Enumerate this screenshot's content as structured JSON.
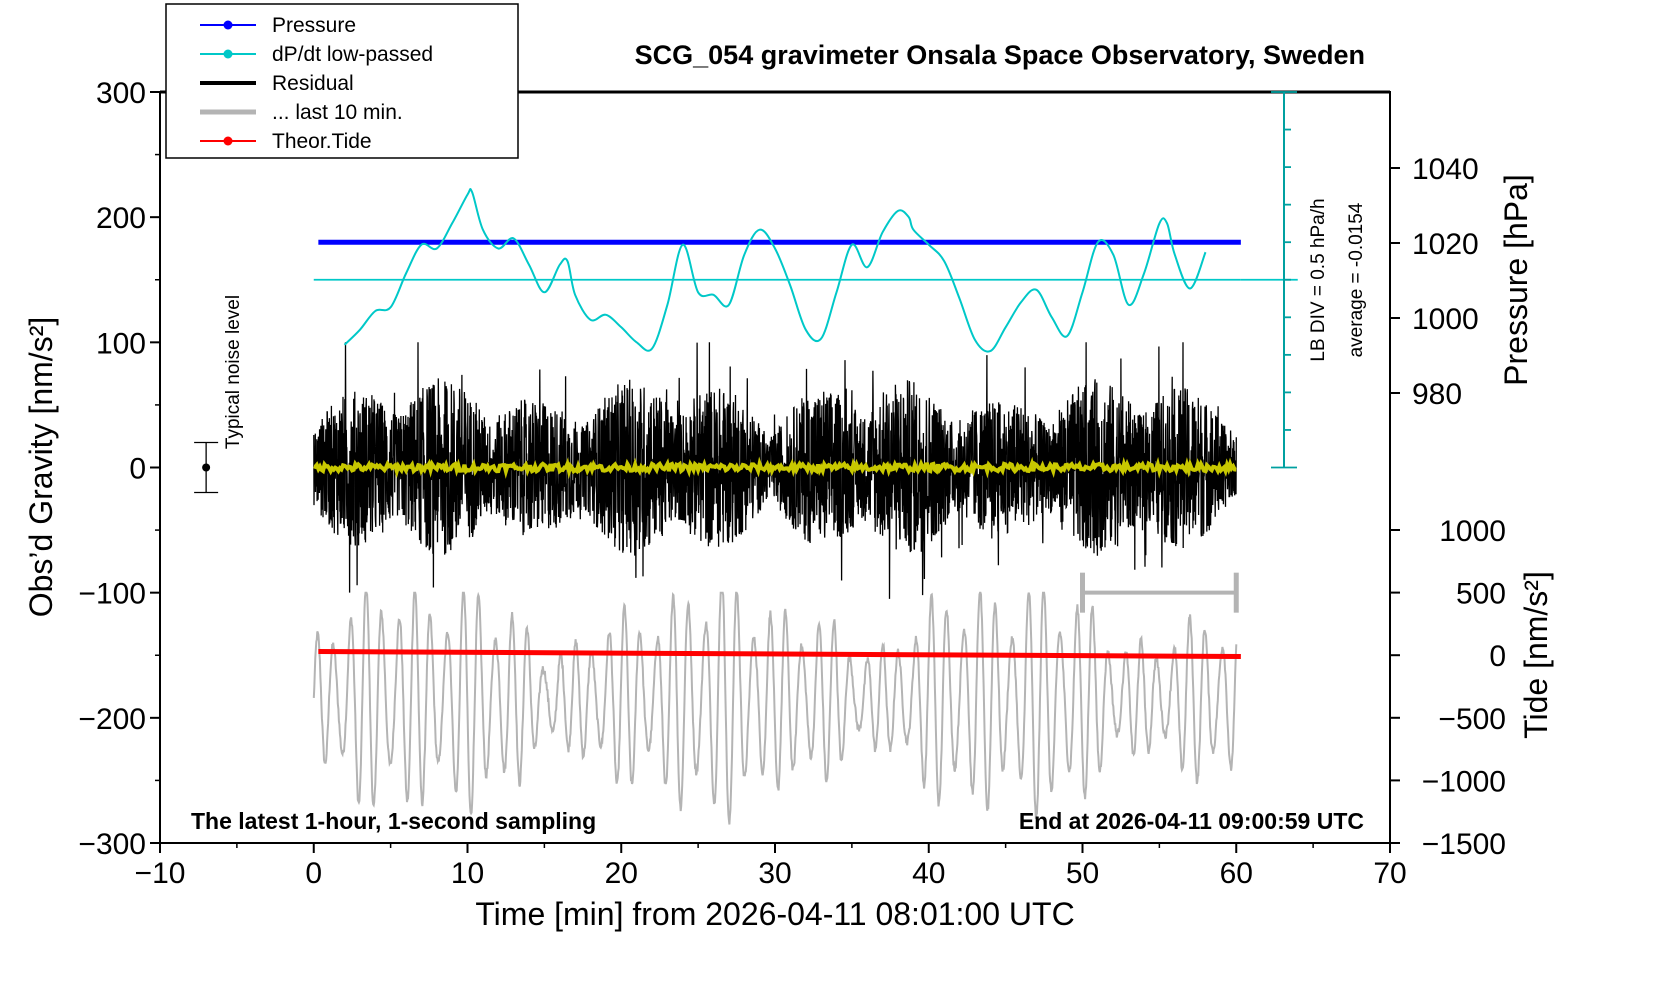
{
  "chart_data": {
    "type": "line",
    "title": "SCG_054 gravimeter Onsala Space Observatory, Sweden",
    "xlabel": "Time [min] from 2026-04-11 08:01:00 UTC",
    "ylabel": "Obs’d Gravity [nm/s²]",
    "ylabel_right_top": "Pressure [hPa]",
    "ylabel_right_bottom": "Tide [nm/s²]",
    "xlim": [
      -10,
      70
    ],
    "ylim": [
      -300,
      300
    ],
    "x_ticks": [
      "−10",
      "0",
      "10",
      "20",
      "30",
      "40",
      "50",
      "60",
      "70"
    ],
    "y_ticks": [
      "300",
      "200",
      "100",
      "0",
      "−100",
      "−200",
      "−300"
    ],
    "pressure_axis": {
      "ticks": [
        "1040",
        "1020",
        "1000",
        "980"
      ],
      "tick_values": [
        1040,
        1020,
        1000,
        980
      ],
      "value": 1020
    },
    "tide_axis": {
      "ticks": [
        "1000",
        "500",
        "0",
        "−500",
        "−1000",
        "−1500"
      ],
      "tick_values": [
        1000,
        500,
        0,
        -500,
        -1000,
        -1500
      ],
      "start": -120,
      "end": -50
    },
    "dpdt_scale": {
      "label": "LB DIV = 0.5 hPa/h",
      "average_label": "average = -0.0154",
      "baseline": 150
    },
    "noise_label": "Typical noise level",
    "noise_bar": {
      "x": -7,
      "center": 0,
      "half_range": 20
    },
    "last10_bracket": {
      "x_start": 50,
      "x_end": 60,
      "y": -100
    },
    "left_note": "The latest 1-hour, 1-second sampling",
    "right_note": "End at 2026-04-11 09:00:59 UTC",
    "legend": [
      {
        "label": "Pressure",
        "color": "#0000ff",
        "marker": true
      },
      {
        "label": "dP/dt low-passed",
        "color": "#00c8c8",
        "marker": true
      },
      {
        "label": "Residual",
        "color": "#000000",
        "marker": false
      },
      {
        "label": "... last 10 min.",
        "color": "#b4b4b4",
        "marker": false
      },
      {
        "label": "Theor.Tide",
        "color": "#ff0000",
        "marker": true
      }
    ],
    "series": [
      {
        "name": "Pressure",
        "color": "#0000ff",
        "x": [
          0.3,
          60.3
        ],
        "y": [
          180,
          180
        ]
      },
      {
        "name": "dP/dt low-passed",
        "color": "#00c8c8",
        "x": [
          2,
          3,
          4,
          5,
          6,
          7,
          8,
          9,
          10,
          10.3,
          11,
          12,
          13,
          14,
          15,
          16,
          16.5,
          17,
          18,
          19,
          20,
          21,
          22,
          23,
          24,
          25,
          26,
          27,
          28,
          29,
          30,
          31,
          32,
          33,
          34,
          35,
          36,
          37,
          38,
          38.7,
          39,
          40,
          41,
          42,
          43,
          44,
          45,
          46,
          47,
          48,
          49,
          50,
          51,
          52,
          53,
          54,
          55,
          55.5,
          56,
          57,
          58
        ],
        "y": [
          98,
          110,
          125,
          128,
          155,
          178,
          175,
          195,
          218,
          220,
          190,
          175,
          183,
          162,
          140,
          162,
          165,
          138,
          118,
          122,
          112,
          100,
          95,
          130,
          178,
          140,
          138,
          130,
          170,
          190,
          175,
          145,
          110,
          103,
          140,
          178,
          160,
          188,
          205,
          200,
          190,
          178,
          165,
          135,
          102,
          93,
          112,
          132,
          142,
          120,
          105,
          140,
          180,
          170,
          130,
          155,
          195,
          195,
          170,
          143,
          172
        ]
      },
      {
        "name": "Residual",
        "color": "#000000",
        "x": [
          0,
          60
        ],
        "amplitude": [
          -105,
          100
        ]
      },
      {
        "name": "Residual smoothed",
        "color": "#c8c800",
        "x": [
          0,
          60
        ],
        "y": [
          0,
          0
        ]
      },
      {
        "name": "Theor.Tide",
        "color": "#ff0000",
        "x": [
          0.3,
          60.3
        ],
        "y": [
          -147,
          -151
        ]
      },
      {
        "name": "... last 10 min.",
        "color": "#b4b4b4",
        "x": [
          0,
          60
        ],
        "amplitude": [
          -290,
          -100
        ]
      }
    ]
  }
}
